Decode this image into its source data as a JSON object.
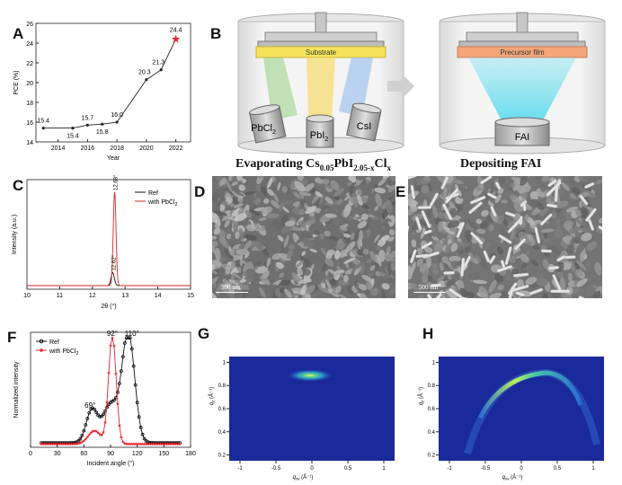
{
  "panels": {
    "A": {
      "letter": "A",
      "ylabel": "PCE (%)",
      "xlabel": "Year",
      "yticks": [
        "14",
        "16",
        "18",
        "20",
        "22",
        "24",
        "26"
      ],
      "xticks": [
        "2014",
        "2016",
        "2018",
        "2020",
        "2022"
      ]
    },
    "B": {
      "letter": "B",
      "substrate_label": "Substrate",
      "precursor_label": "Precursor film",
      "source1_main": "PbCl",
      "source1_sub": "2",
      "source2_main": "PbI",
      "source2_sub": "2",
      "source3": "CsI",
      "source4": "FAI",
      "caption_left_a": "Evaporating Cs",
      "caption_left_sub1": "0.05",
      "caption_left_b": "PbI",
      "caption_left_sub2": "2.05-x",
      "caption_left_c": "Cl",
      "caption_left_sub3": "x",
      "caption_right": "Depositing FAI"
    },
    "C": {
      "letter": "C",
      "ylabel": "Intensity (a.u.)",
      "xlabel": "2θ (°)",
      "xticks": [
        "10",
        "11",
        "12",
        "13",
        "14",
        "15"
      ],
      "legend_ref": "Ref",
      "legend_with": "with PbCl",
      "legend_with_sub": "2",
      "peak_label_high": "12.68°",
      "peak_label_low": "12.62°"
    },
    "D": {
      "letter": "D",
      "scale_bar": "500 nm"
    },
    "E": {
      "letter": "E",
      "scale_bar": "500 nm"
    },
    "F": {
      "letter": "F",
      "ylabel": "Normalized intensity",
      "xlabel": "Incident angle (°)",
      "xticks": [
        "0",
        "30",
        "60",
        "90",
        "120",
        "150",
        "180"
      ],
      "legend_ref": "Ref",
      "legend_with": "with PbCl",
      "legend_with_sub": "2",
      "ann_69": "69°",
      "ann_92": "92°",
      "ann_110": "110°"
    },
    "G": {
      "letter": "G",
      "ylabel_main": "q",
      "ylabel_sub": "z",
      "ylabel_unit": " (Å",
      "xlabel_main": "q",
      "xlabel_sub": "xy",
      "xlabel_unit": " (Å",
      "xticks": [
        "-1",
        "-0.5",
        "0",
        "0.5",
        "1"
      ],
      "yticks": [
        "0.2",
        "0.4",
        "0.6",
        "0.8",
        "1"
      ]
    },
    "H": {
      "letter": "H",
      "ylabel_main": "q",
      "ylabel_sub": "z",
      "ylabel_unit": " (Å",
      "xlabel_main": "q",
      "xlabel_sub": "xy",
      "xlabel_unit": " (Å",
      "xticks": [
        "-1",
        "-0.5",
        "0",
        "0.5",
        "1"
      ],
      "yticks": [
        "0.2",
        "0.4",
        "0.6",
        "0.8",
        "1"
      ]
    }
  },
  "chart_data": [
    {
      "panel": "A",
      "type": "line",
      "x": [
        2013,
        2015,
        2016,
        2017,
        2018,
        2020,
        2021,
        2022
      ],
      "values": [
        15.4,
        15.4,
        15.7,
        15.8,
        16.0,
        20.3,
        21.3,
        24.4
      ],
      "point_labels": [
        "15.4",
        "15.4",
        "15.7",
        "15.8",
        "16.0",
        "20.3",
        "21.3",
        "24.4"
      ],
      "xlim": [
        2012.5,
        2023
      ],
      "ylim": [
        14,
        26
      ],
      "highlight_last": "#e8262b"
    },
    {
      "panel": "C",
      "type": "line",
      "xlim": [
        10,
        15
      ],
      "series": [
        {
          "color": "#111111",
          "center": 12.62,
          "height": 0.14,
          "width": 0.07
        },
        {
          "color": "#d62728",
          "center": 12.68,
          "height": 1.0,
          "width": 0.06
        }
      ]
    },
    {
      "panel": "F",
      "type": "line",
      "xlim": [
        0,
        180
      ],
      "ylim": [
        0,
        1.05
      ],
      "series": [
        {
          "color": "#111111",
          "peaks": [
            [
              110,
              1.0,
              10
            ],
            [
              90,
              0.35,
              12
            ],
            [
              69,
              0.3,
              9
            ]
          ],
          "baseline": 0.04
        },
        {
          "color": "#e8262b",
          "peaks": [
            [
              92,
              1.0,
              6
            ],
            [
              72,
              0.12,
              10
            ]
          ],
          "baseline": 0.03
        }
      ]
    }
  ]
}
